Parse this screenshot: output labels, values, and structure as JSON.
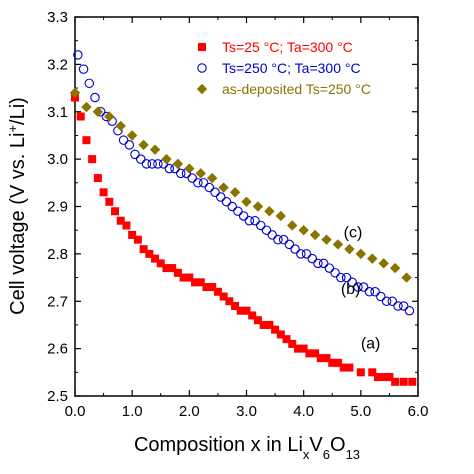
{
  "chart_data": {
    "type": "scatter",
    "xlabel_parts": [
      "Composition x in Li",
      "x",
      "V",
      "6",
      "O",
      "13"
    ],
    "ylabel_parts": [
      "Cell voltage (V vs. Li",
      "+",
      "/Li)"
    ],
    "xlim": [
      0.0,
      6.0
    ],
    "ylim": [
      2.5,
      3.3
    ],
    "x_ticks": [
      "0.0",
      "1.0",
      "2.0",
      "3.0",
      "4.0",
      "5.0",
      "6.0"
    ],
    "y_ticks": [
      "2.5",
      "2.6",
      "2.7",
      "2.8",
      "2.9",
      "3.0",
      "3.1",
      "3.2",
      "3.3"
    ],
    "grid": false,
    "legend_position": "top-right",
    "annotations": [
      {
        "text": "(a)",
        "x": 5.0,
        "y": 2.6
      },
      {
        "text": "(b)",
        "x": 4.65,
        "y": 2.715
      },
      {
        "text": "(c)",
        "x": 4.7,
        "y": 2.835
      }
    ],
    "series": [
      {
        "name": "Ts=25 °C; Ta=300 °C",
        "marker": "square",
        "color": "#ff0000",
        "x": [
          0.0,
          0.1,
          0.2,
          0.3,
          0.4,
          0.5,
          0.6,
          0.7,
          0.8,
          0.9,
          1.0,
          1.1,
          1.2,
          1.3,
          1.4,
          1.5,
          1.6,
          1.7,
          1.8,
          1.9,
          2.0,
          2.1,
          2.2,
          2.3,
          2.4,
          2.5,
          2.6,
          2.7,
          2.8,
          2.9,
          3.0,
          3.1,
          3.2,
          3.3,
          3.4,
          3.5,
          3.6,
          3.7,
          3.8,
          3.9,
          4.0,
          4.1,
          4.2,
          4.3,
          4.4,
          4.5,
          4.6,
          4.7,
          4.8,
          5.0,
          5.2,
          5.3,
          5.4,
          5.5,
          5.6,
          5.75,
          5.9
        ],
        "y": [
          3.13,
          3.09,
          3.04,
          3.0,
          2.96,
          2.93,
          2.91,
          2.89,
          2.87,
          2.86,
          2.84,
          2.83,
          2.81,
          2.8,
          2.79,
          2.78,
          2.77,
          2.77,
          2.76,
          2.75,
          2.75,
          2.74,
          2.74,
          2.73,
          2.73,
          2.72,
          2.71,
          2.7,
          2.69,
          2.68,
          2.68,
          2.67,
          2.66,
          2.65,
          2.65,
          2.64,
          2.63,
          2.62,
          2.61,
          2.6,
          2.6,
          2.59,
          2.59,
          2.58,
          2.58,
          2.57,
          2.57,
          2.56,
          2.56,
          2.55,
          2.55,
          2.54,
          2.54,
          2.54,
          2.53,
          2.53,
          2.53
        ]
      },
      {
        "name": "Ts=250 °C; Ta=300 °C",
        "marker": "circle",
        "color": "#0000cc",
        "x": [
          0.05,
          0.15,
          0.25,
          0.35,
          0.45,
          0.55,
          0.65,
          0.75,
          0.85,
          0.95,
          1.05,
          1.15,
          1.25,
          1.35,
          1.45,
          1.55,
          1.65,
          1.75,
          1.85,
          1.95,
          2.05,
          2.15,
          2.25,
          2.35,
          2.45,
          2.55,
          2.65,
          2.75,
          2.85,
          2.95,
          3.05,
          3.15,
          3.25,
          3.35,
          3.45,
          3.55,
          3.65,
          3.75,
          3.85,
          3.95,
          4.05,
          4.15,
          4.25,
          4.35,
          4.45,
          4.55,
          4.65,
          4.75,
          4.85,
          4.95,
          5.05,
          5.15,
          5.25,
          5.35,
          5.45,
          5.55,
          5.65,
          5.75,
          5.85
        ],
        "y": [
          3.22,
          3.19,
          3.16,
          3.13,
          3.1,
          3.09,
          3.08,
          3.06,
          3.04,
          3.03,
          3.01,
          3.0,
          2.99,
          2.99,
          2.99,
          2.99,
          2.98,
          2.98,
          2.97,
          2.97,
          2.96,
          2.95,
          2.95,
          2.94,
          2.93,
          2.92,
          2.91,
          2.9,
          2.89,
          2.88,
          2.87,
          2.87,
          2.86,
          2.85,
          2.84,
          2.83,
          2.83,
          2.82,
          2.81,
          2.8,
          2.8,
          2.79,
          2.78,
          2.78,
          2.77,
          2.76,
          2.75,
          2.75,
          2.74,
          2.73,
          2.73,
          2.72,
          2.72,
          2.71,
          2.7,
          2.7,
          2.69,
          2.69,
          2.68
        ]
      },
      {
        "name": "as-deposited Ts=250 °C",
        "marker": "diamond",
        "color": "#8b7300",
        "x": [
          0.0,
          0.2,
          0.4,
          0.6,
          0.8,
          1.0,
          1.2,
          1.4,
          1.6,
          1.8,
          2.0,
          2.2,
          2.4,
          2.6,
          2.8,
          3.0,
          3.2,
          3.4,
          3.6,
          3.8,
          4.0,
          4.2,
          4.4,
          4.6,
          4.8,
          5.0,
          5.2,
          5.4,
          5.6,
          5.8
        ],
        "y": [
          3.14,
          3.11,
          3.1,
          3.09,
          3.07,
          3.05,
          3.03,
          3.02,
          3.0,
          2.99,
          2.98,
          2.97,
          2.96,
          2.94,
          2.93,
          2.91,
          2.9,
          2.89,
          2.88,
          2.86,
          2.85,
          2.84,
          2.83,
          2.82,
          2.81,
          2.8,
          2.79,
          2.78,
          2.77,
          2.75
        ]
      }
    ]
  }
}
